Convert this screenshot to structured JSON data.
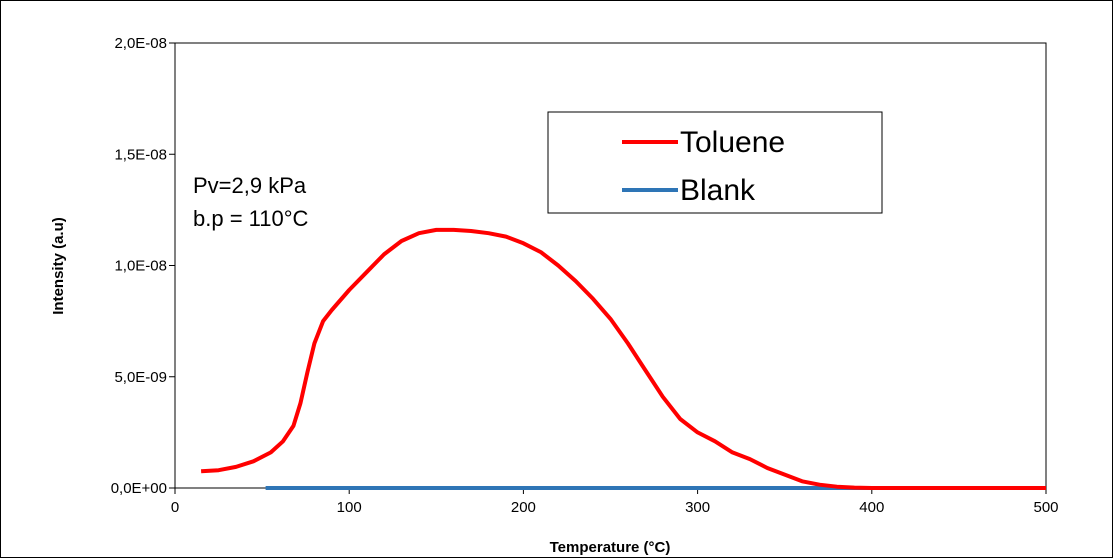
{
  "chart_data": {
    "type": "line",
    "xlabel": "Temperature (°C)",
    "ylabel": "Intensity (a.u)",
    "xlim": [
      0,
      500
    ],
    "ylim": [
      0,
      2e-08
    ],
    "xticks": [
      0,
      100,
      200,
      300,
      400,
      500
    ],
    "xtick_labels": [
      "0",
      "100",
      "200",
      "300",
      "400",
      "500"
    ],
    "yticks": [
      0,
      5e-09,
      1e-08,
      1.5e-08,
      2e-08
    ],
    "ytick_labels": [
      "0,0E+00",
      "5,0E-09",
      "1,0E-08",
      "1,5E-08",
      "2,0E-08"
    ],
    "grid": false,
    "legend": "top-right",
    "annotations": [
      "Pv=2,9 kPa",
      "b.p = 110°C"
    ],
    "series": [
      {
        "name": "Toluene",
        "color": "#ff0000",
        "x": [
          15,
          25,
          35,
          45,
          55,
          62,
          68,
          72,
          76,
          80,
          85,
          90,
          100,
          110,
          120,
          130,
          140,
          150,
          160,
          170,
          180,
          190,
          200,
          210,
          220,
          230,
          240,
          250,
          260,
          270,
          280,
          290,
          300,
          310,
          320,
          330,
          340,
          350,
          360,
          370,
          380,
          390,
          400,
          450,
          500
        ],
        "y": [
          7.5e-10,
          8e-10,
          9.5e-10,
          1.2e-09,
          1.6e-09,
          2.1e-09,
          2.8e-09,
          3.8e-09,
          5.2e-09,
          6.5e-09,
          7.5e-09,
          8e-09,
          8.9e-09,
          9.7e-09,
          1.05e-08,
          1.11e-08,
          1.145e-08,
          1.16e-08,
          1.16e-08,
          1.155e-08,
          1.145e-08,
          1.13e-08,
          1.1e-08,
          1.06e-08,
          1e-08,
          9.3e-09,
          8.5e-09,
          7.6e-09,
          6.5e-09,
          5.3e-09,
          4.1e-09,
          3.1e-09,
          2.5e-09,
          2.1e-09,
          1.6e-09,
          1.3e-09,
          9e-10,
          6e-10,
          3e-10,
          1.5e-10,
          6e-11,
          2e-11,
          0,
          0,
          0
        ]
      },
      {
        "name": "Blank",
        "color": "#2e75b6",
        "x": [
          52,
          500
        ],
        "y": [
          0,
          0
        ]
      }
    ]
  }
}
